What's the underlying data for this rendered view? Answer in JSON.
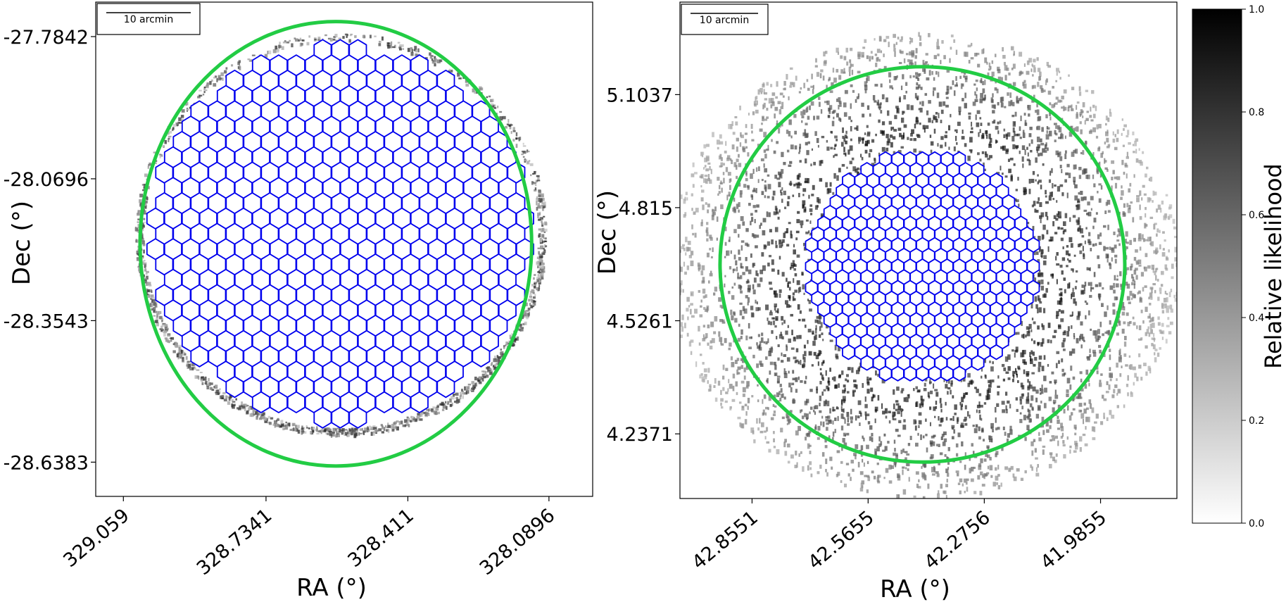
{
  "chart_data": [
    {
      "type": "scatter",
      "xlabel": "RA (°)",
      "ylabel": "Dec (°)",
      "x_ticks": [
        329.059,
        328.7341,
        328.411,
        328.0896
      ],
      "y_ticks": [
        -27.7842,
        -28.0696,
        -28.3543,
        -28.6383
      ],
      "xlim": [
        329.122,
        327.99
      ],
      "ylim": [
        -28.707,
        -27.715
      ],
      "x_reversed": true,
      "scalebar_label": "10 arcmin",
      "grid": false,
      "series": [
        {
          "marker": "circle",
          "color": "#22cc44",
          "center": [
            328.575,
            -28.2
          ],
          "radius_deg": 0.446
        },
        {
          "marker": "hexagonal tile grid",
          "color": "#0000ee",
          "center": [
            328.565,
            -28.18
          ],
          "radius_deg": 0.375
        },
        {
          "marker": "likelihood density",
          "color": "#000000",
          "note_values": "0 to 1 relative likelihood, concentrated in a ring outside the tiles"
        }
      ]
    },
    {
      "type": "scatter",
      "xlabel": "RA (°)",
      "ylabel": "Dec (°)",
      "x_ticks": [
        42.8551,
        42.5655,
        42.2756,
        41.9855
      ],
      "y_ticks": [
        5.1037,
        4.815,
        4.5261,
        4.2371
      ],
      "xlim": [
        43.035,
        41.795
      ],
      "ylim": [
        4.072,
        5.34
      ],
      "x_reversed": true,
      "scalebar_label": "10 arcmin",
      "grid": false,
      "series": [
        {
          "marker": "circle",
          "color": "#22cc44",
          "center": [
            42.43,
            4.67
          ],
          "radius_deg": 0.505
        },
        {
          "marker": "hexagonal tile grid",
          "color": "#0000ee",
          "center": [
            42.43,
            4.665
          ],
          "radius_deg": 0.3
        },
        {
          "marker": "likelihood density",
          "color": "#000000",
          "note_values": "0 to 1 relative likelihood, spread over the whole field, darkest around the tiles"
        }
      ]
    }
  ],
  "colorbar": {
    "label": "Relative likelihood",
    "ticks": [
      "0.0",
      "0.2",
      "0.4",
      "0.6",
      "0.8",
      "1.0"
    ],
    "range": [
      0.0,
      1.0
    ],
    "colormap": "white-to-black"
  }
}
